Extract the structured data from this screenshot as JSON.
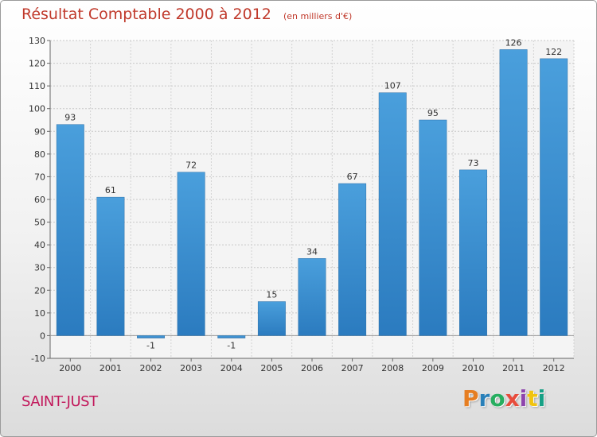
{
  "header": {
    "title": "Résultat Comptable 2000 à 2012",
    "subtitle": "(en milliers d'€)"
  },
  "footer": {
    "commune": "SAINT-JUST",
    "logo_text": "Proxiti",
    "logo_colors": [
      "#e67e22",
      "#2980b9",
      "#27ae60",
      "#e74c3c",
      "#8e44ad",
      "#f1c40f",
      "#16a085"
    ]
  },
  "colors": {
    "bar": "#4a9fdc",
    "bar_dark": "#2b7bbf",
    "title": "#c0392b",
    "commune": "#c2185b"
  },
  "chart_data": {
    "type": "bar",
    "categories": [
      "2000",
      "2001",
      "2002",
      "2003",
      "2004",
      "2005",
      "2006",
      "2007",
      "2008",
      "2009",
      "2010",
      "2011",
      "2012"
    ],
    "values": [
      93,
      61,
      -1,
      72,
      -1,
      15,
      34,
      67,
      107,
      95,
      73,
      126,
      122
    ],
    "data_labels": [
      "93",
      "61",
      "-1",
      "72",
      "-1",
      "15",
      "34",
      "67",
      "107",
      "95",
      "73",
      "126",
      "122"
    ],
    "title": "Résultat Comptable 2000 à 2012",
    "subtitle": "(en milliers d'€)",
    "ylim": [
      -10,
      130
    ],
    "yticks": [
      -10,
      0,
      10,
      20,
      30,
      40,
      50,
      60,
      70,
      80,
      90,
      100,
      110,
      120,
      130
    ],
    "grid": true
  }
}
